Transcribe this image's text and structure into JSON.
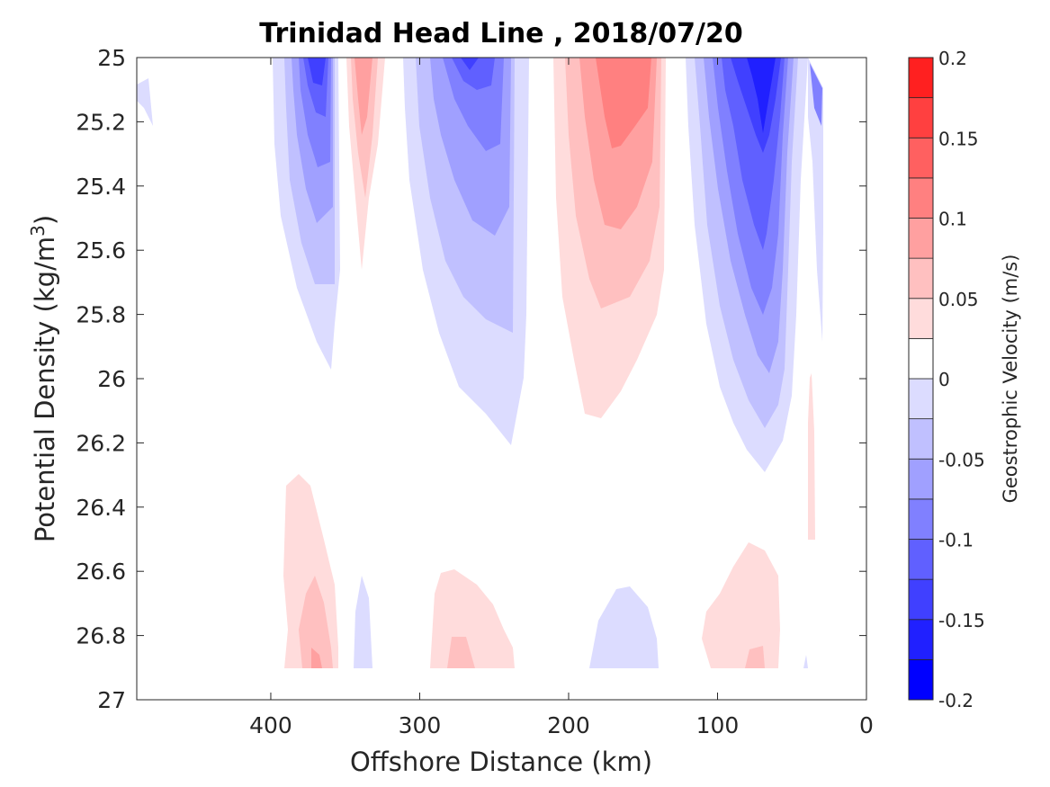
{
  "chart_data": {
    "type": "contour",
    "title": "Trinidad Head Line , 2018/07/20",
    "xlabel": "Offshore Distance (km)",
    "ylabel": "Potential Density (kg/m^3)",
    "xlim": [
      490,
      0
    ],
    "x_reversed": true,
    "ylim": [
      25,
      27
    ],
    "y_reversed": true,
    "xticks": [
      400,
      300,
      200,
      100,
      0
    ],
    "yticks": [
      25,
      25.2,
      25.4,
      25.6,
      25.8,
      26,
      26.2,
      26.4,
      26.6,
      26.8,
      27
    ],
    "colorbar": {
      "label": "Geostrophic Velocity (m/s)",
      "range": [
        -0.2,
        0.2
      ],
      "levels": [
        -0.2,
        -0.175,
        -0.15,
        -0.125,
        -0.1,
        -0.075,
        -0.05,
        -0.025,
        0,
        0.025,
        0.05,
        0.075,
        0.1,
        0.125,
        0.15,
        0.175,
        0.2
      ],
      "tick_labels": [
        "0.2",
        "0.15",
        "0.1",
        "0.05",
        "0",
        "-0.05",
        "-0.1",
        "-0.15",
        "-0.2"
      ],
      "colors": [
        "#0000ff",
        "#2020ff",
        "#4040ff",
        "#6060ff",
        "#8080ff",
        "#a0a0ff",
        "#c0c0ff",
        "#dcdcff",
        "#ffffff",
        "#ffffff",
        "#ffdcdc",
        "#ffc0c0",
        "#ffa0a0",
        "#ff8080",
        "#ff6060",
        "#ff4040",
        "#ff2020",
        "#ff0000"
      ]
    },
    "features": [
      {
        "name": "eddy-negative-far-offshore",
        "x_range": [
          490,
          480
        ],
        "sigma_range": [
          25.05,
          25.2
        ],
        "min_velocity": -0.025
      },
      {
        "name": "jet-negative-370km",
        "x_range": [
          400,
          355
        ],
        "sigma_range": [
          25.0,
          25.95
        ],
        "min_velocity": -0.15
      },
      {
        "name": "jet-positive-335km",
        "x_range": [
          350,
          325
        ],
        "sigma_range": [
          25.0,
          25.65
        ],
        "max_velocity": 0.1
      },
      {
        "name": "jet-negative-265km",
        "x_range": [
          310,
          230
        ],
        "sigma_range": [
          25.0,
          26.2
        ],
        "min_velocity": -0.15
      },
      {
        "name": "jet-positive-170km",
        "x_range": [
          220,
          140
        ],
        "sigma_range": [
          25.0,
          26.1
        ],
        "max_velocity": 0.125
      },
      {
        "name": "jet-negative-70km",
        "x_range": [
          125,
          30
        ],
        "sigma_range": [
          25.0,
          26.3
        ],
        "min_velocity": -0.2
      },
      {
        "name": "deep-positive-370km",
        "x_range": [
          395,
          355
        ],
        "sigma_range": [
          26.33,
          27.0
        ],
        "max_velocity": 0.15
      },
      {
        "name": "deep-negative-335km",
        "x_range": [
          345,
          330
        ],
        "sigma_range": [
          26.6,
          27.0
        ],
        "min_velocity": -0.05
      },
      {
        "name": "deep-positive-270km",
        "x_range": [
          300,
          235
        ],
        "sigma_range": [
          26.6,
          27.0
        ],
        "max_velocity": 0.1
      },
      {
        "name": "deep-negative-165km",
        "x_range": [
          190,
          140
        ],
        "sigma_range": [
          26.65,
          27.0
        ],
        "min_velocity": -0.05
      },
      {
        "name": "deep-positive-80km",
        "x_range": [
          115,
          60
        ],
        "sigma_range": [
          26.5,
          27.0
        ],
        "max_velocity": 0.1
      },
      {
        "name": "positive-sliver-40km",
        "x_range": [
          45,
          35
        ],
        "sigma_range": [
          26.0,
          26.5
        ],
        "max_velocity": 0.05
      }
    ]
  }
}
